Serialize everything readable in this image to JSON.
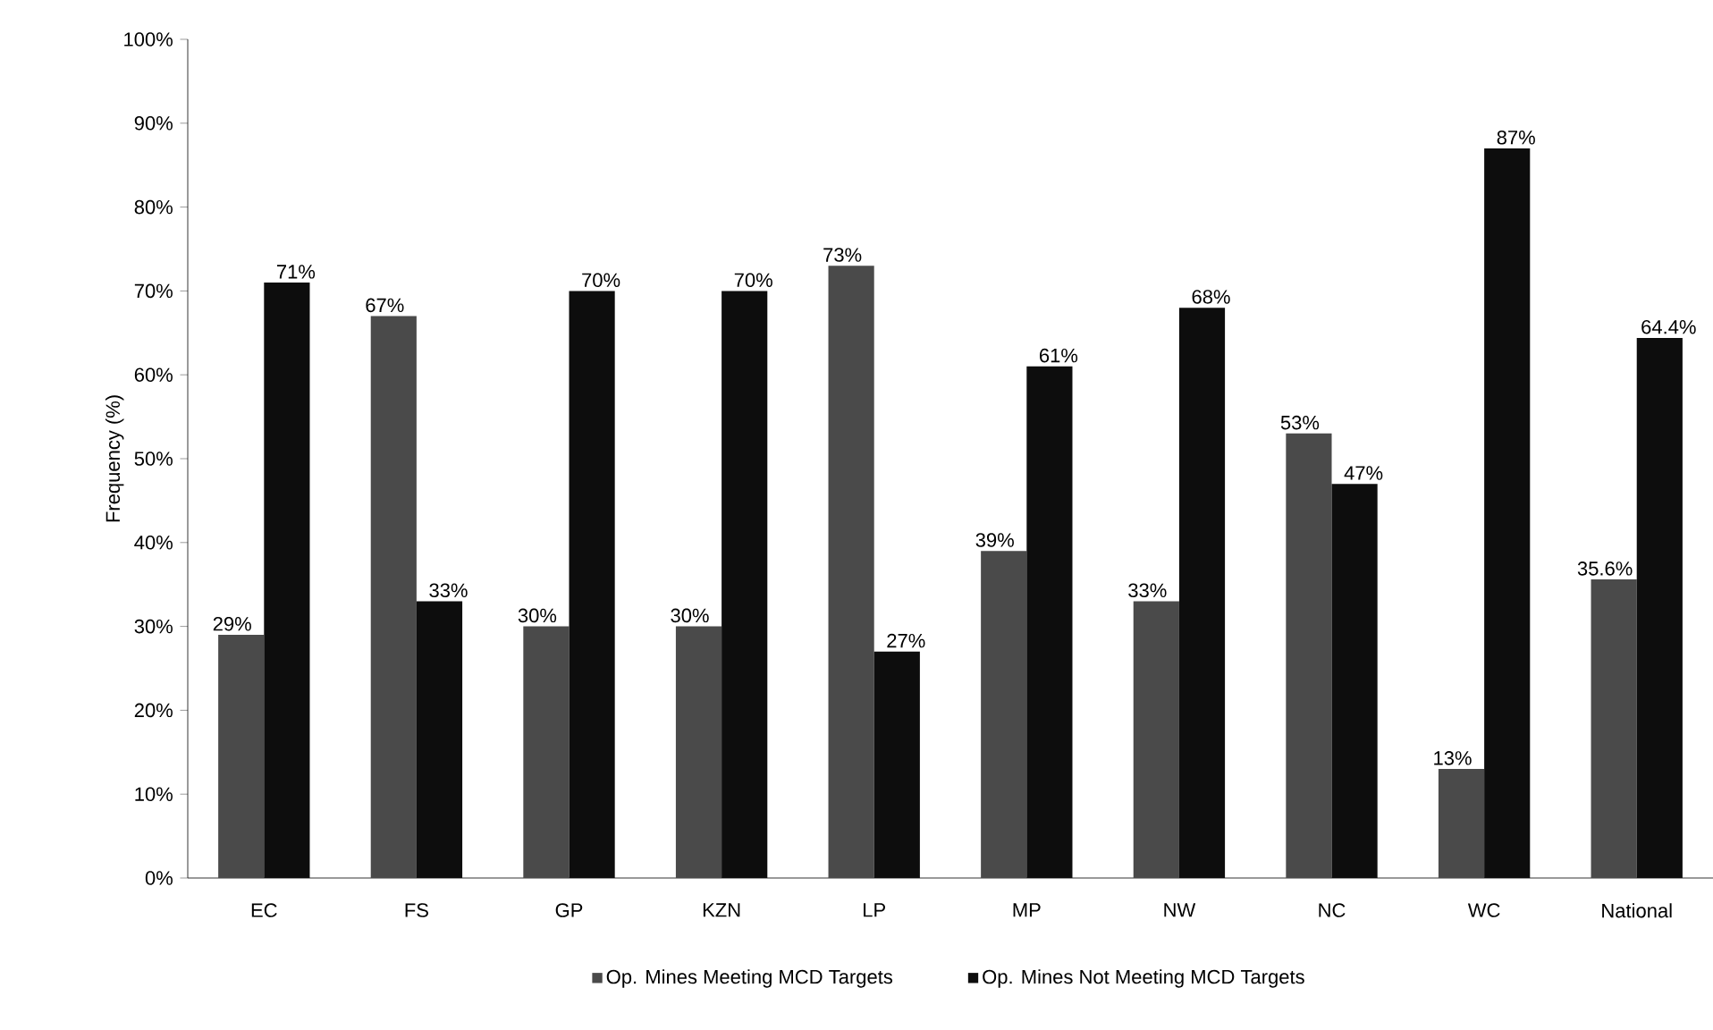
{
  "chart_data": {
    "type": "bar",
    "ylabel": "Frequency (%)",
    "categories": [
      "EC",
      "FS",
      "GP",
      "KZN",
      "LP",
      "MP",
      "NW",
      "NC",
      "WC",
      "National"
    ],
    "series": [
      {
        "name": "Op. Mines Meeting MCD Targets",
        "color": "#4a4a4a",
        "values": [
          29,
          67,
          30,
          30,
          73,
          39,
          33,
          53,
          13,
          35.6
        ],
        "value_labels": [
          "29%",
          "67%",
          "30%",
          "30%",
          "73%",
          "39%",
          "33%",
          "53%",
          "13%",
          "35.6%"
        ]
      },
      {
        "name": "Op. Mines Not Meeting MCD Targets",
        "color": "#0d0d0d",
        "values": [
          71,
          33,
          70,
          70,
          27,
          61,
          68,
          47,
          87,
          64.4
        ],
        "value_labels": [
          "71%",
          "33%",
          "70%",
          "70%",
          "27%",
          "61%",
          "68%",
          "47%",
          "87%",
          "64.4%"
        ]
      }
    ],
    "ylim": [
      0,
      100
    ],
    "yticks": [
      {
        "value": 0,
        "label": "0%"
      },
      {
        "value": 10,
        "label": "10%"
      },
      {
        "value": 20,
        "label": "20%"
      },
      {
        "value": 30,
        "label": "30%"
      },
      {
        "value": 40,
        "label": "40%"
      },
      {
        "value": 50,
        "label": "50%"
      },
      {
        "value": 60,
        "label": "60%"
      },
      {
        "value": 70,
        "label": "70%"
      },
      {
        "value": 80,
        "label": "80%"
      },
      {
        "value": 90,
        "label": "90%"
      },
      {
        "value": 100,
        "label": "100%"
      }
    ],
    "legend": "bottom"
  }
}
